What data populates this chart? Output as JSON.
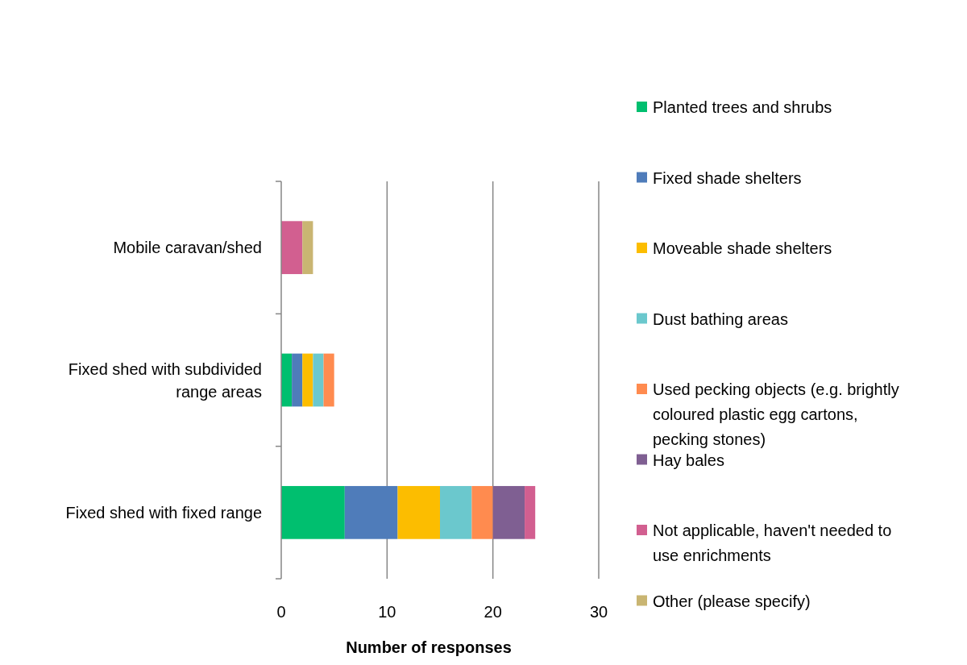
{
  "chart_data": {
    "type": "bar",
    "orientation": "horizontal",
    "stacked": true,
    "xlabel": "Number of responses",
    "categories": [
      "Mobile caravan/shed",
      "Fixed shed with subdivided range areas",
      "Fixed shed with fixed range"
    ],
    "series": [
      {
        "name": "Planted trees and shrubs",
        "color": "#00bf6f",
        "values": [
          0,
          1,
          6
        ]
      },
      {
        "name": "Fixed shade shelters",
        "color": "#4f7cba",
        "values": [
          0,
          1,
          5
        ]
      },
      {
        "name": "Moveable shade shelters",
        "color": "#fcbd00",
        "values": [
          0,
          1,
          4
        ]
      },
      {
        "name": "Dust bathing areas",
        "color": "#6bc8cd",
        "values": [
          0,
          1,
          3
        ]
      },
      {
        "name": "Used pecking objects (e.g. brightly coloured plastic egg cartons, pecking stones)",
        "color": "#ff8b4f",
        "values": [
          0,
          1,
          2
        ]
      },
      {
        "name": "Hay bales",
        "color": "#7f5f92",
        "values": [
          0,
          0,
          3
        ]
      },
      {
        "name": "Not applicable, haven't needed to use enrichments",
        "color": "#d25f90",
        "values": [
          2,
          0,
          1
        ]
      },
      {
        "name": "Other (please specify)",
        "color": "#c9b572",
        "values": [
          1,
          0,
          0
        ]
      }
    ],
    "xlim": [
      0,
      30
    ],
    "xticks": [
      0,
      10,
      20,
      30
    ],
    "grid": "x",
    "legend": "right"
  }
}
